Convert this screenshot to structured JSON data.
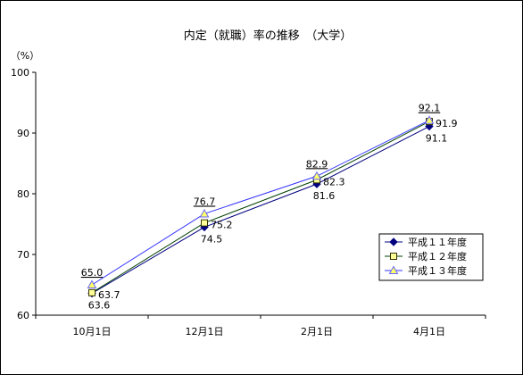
{
  "chart_data": {
    "type": "line",
    "title": "内定（就職）率の推移　（大学）",
    "ylabel": "（%）",
    "xlabel": "",
    "ylim": [
      60,
      100
    ],
    "yticks": [
      60,
      70,
      80,
      90,
      100
    ],
    "categories": [
      "10月1日",
      "12月1日",
      "2月1日",
      "4月1日"
    ],
    "grid": false,
    "legend_position": "bottom-right",
    "series": [
      {
        "name": "平成１１年度",
        "values": [
          63.6,
          74.5,
          81.6,
          91.1
        ],
        "labels": [
          "63.6",
          "74.5",
          "81.6",
          "91.1"
        ],
        "marker": "diamond",
        "line_color": "#000080",
        "marker_fill": "#000080",
        "marker_stroke": "#000080"
      },
      {
        "name": "平成１２年度",
        "values": [
          63.7,
          75.2,
          82.3,
          91.9
        ],
        "labels": [
          "63.7",
          "75.2",
          "82.3",
          "91.9"
        ],
        "marker": "square",
        "line_color": "#004000",
        "marker_fill": "#ffff99",
        "marker_stroke": "#333300"
      },
      {
        "name": "平成１３年度",
        "values": [
          65.0,
          76.7,
          82.9,
          92.1
        ],
        "labels": [
          "65.0",
          "76.7",
          "82.9",
          "92.1"
        ],
        "marker": "triangle",
        "line_color": "#3333ff",
        "marker_fill": "#ffff66",
        "marker_stroke": "#6666ff"
      }
    ]
  }
}
